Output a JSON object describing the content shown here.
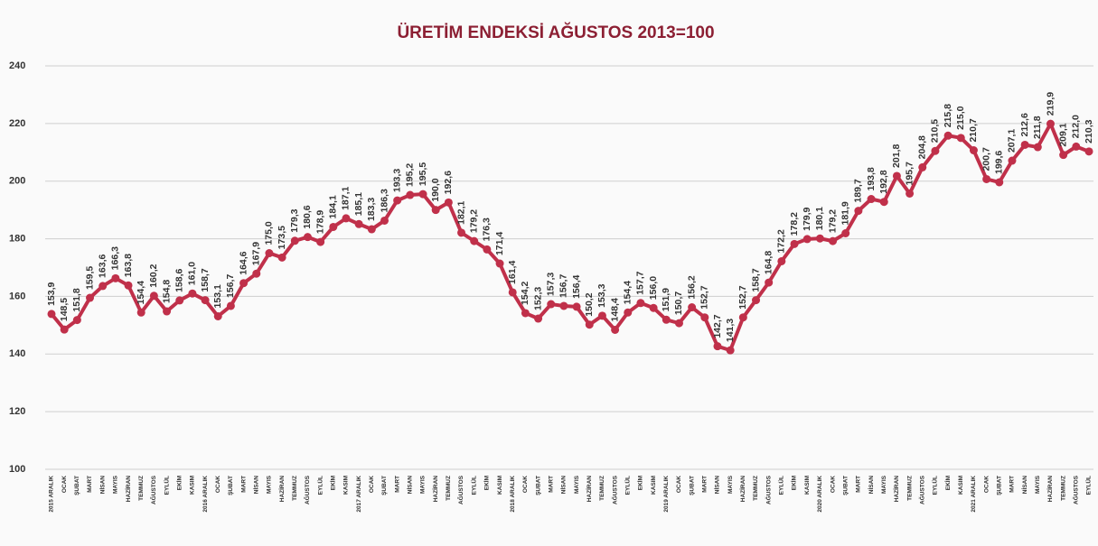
{
  "chart_data": {
    "type": "line",
    "title": "ÜRETİM ENDEKSİ AĞUSTOS 2013=100",
    "categories": [
      "2015 ARALIK",
      "OCAK",
      "ŞUBAT",
      "MART",
      "NİSAN",
      "MAYIS",
      "HAZİRAN",
      "TEMMUZ",
      "AĞUSTOS",
      "EYLÜL",
      "EKİM",
      "KASIM",
      "2016 ARALIK",
      "OCAK",
      "ŞUBAT",
      "MART",
      "NİSAN",
      "MAYIS",
      "HAZİRAN",
      "TEMMUZ",
      "AĞUSTOS",
      "EYLÜL",
      "EKİM",
      "KASIM",
      "2017 ARALIK",
      "OCAK",
      "ŞUBAT",
      "MART",
      "NİSAN",
      "MAYIS",
      "HAZİRAN",
      "TEMMUZ",
      "AĞUSTOS",
      "EYLÜL",
      "EKİM",
      "KASIM",
      "2018 ARALIK",
      "OCAK",
      "ŞUBAT",
      "MART",
      "NİSAN",
      "MAYIS",
      "HAZİRAN",
      "TEMMUZ",
      "AĞUSTOS",
      "EYLÜL",
      "EKİM",
      "KASIM",
      "2019 ARALIK",
      "OCAK",
      "ŞUBAT",
      "MART",
      "NİSAN",
      "MAYIS",
      "HAZİRAN",
      "TEMMUZ",
      "AĞUSTOS",
      "EYLÜL",
      "EKİM",
      "KASIM",
      "2020 ARALIK",
      "OCAK",
      "ŞUBAT",
      "MART",
      "NİSAN",
      "MAYIS",
      "HAZİRAN",
      "TEMMUZ",
      "AĞUSTOS",
      "EYLÜL",
      "EKİM",
      "KASIM",
      "2021 ARALIK",
      "OCAK",
      "ŞUBAT",
      "MART",
      "NİSAN",
      "MAYIS",
      "HAZİRAN",
      "TEMMUZ",
      "AĞUSTOS",
      "EYLÜL"
    ],
    "values": [
      153.9,
      148.5,
      151.8,
      159.5,
      163.6,
      166.3,
      163.8,
      154.4,
      160.2,
      154.8,
      158.6,
      161.0,
      158.7,
      153.1,
      156.7,
      164.6,
      167.9,
      175.0,
      173.5,
      179.3,
      180.6,
      178.9,
      184.1,
      187.1,
      185.1,
      183.3,
      186.3,
      193.3,
      195.2,
      195.5,
      190.0,
      192.6,
      182.1,
      179.2,
      176.3,
      171.4,
      161.4,
      154.2,
      152.3,
      157.3,
      156.7,
      156.4,
      150.2,
      153.3,
      148.4,
      154.4,
      157.7,
      156.0,
      151.9,
      150.7,
      156.2,
      152.7,
      142.7,
      141.3,
      152.7,
      158.7,
      164.8,
      172.2,
      178.2,
      179.9,
      180.1,
      179.2,
      181.9,
      189.7,
      193.8,
      192.8,
      201.8,
      195.7,
      204.8,
      210.5,
      215.8,
      215.0,
      210.7,
      200.7,
      199.6,
      207.1,
      212.6,
      211.8,
      219.9,
      209.1,
      212.0,
      210.3
    ],
    "value_labels": [
      "153,9",
      "148,5",
      "151,8",
      "159,5",
      "163,6",
      "166,3",
      "163,8",
      "154,4",
      "160,2",
      "154,8",
      "158,6",
      "161,0",
      "158,7",
      "153,1",
      "156,7",
      "164,6",
      "167,9",
      "175,0",
      "173,5",
      "179,3",
      "180,6",
      "178,9",
      "184,1",
      "187,1",
      "185,1",
      "183,3",
      "186,3",
      "193,3",
      "195,2",
      "195,5",
      "190,0",
      "192,6",
      "182,1",
      "179,2",
      "176,3",
      "171,4",
      "161,4",
      "154,2",
      "152,3",
      "157,3",
      "156,7",
      "156,4",
      "150,2",
      "153,3",
      "148,4",
      "154,4",
      "157,7",
      "156,0",
      "151,9",
      "150,7",
      "156,2",
      "152,7",
      "142,7",
      "141,3",
      "152,7",
      "158,7",
      "164,8",
      "172,2",
      "178,2",
      "179,9",
      "180,1",
      "179,2",
      "181,9",
      "189,7",
      "193,8",
      "192,8",
      "201,8",
      "195,7",
      "204,8",
      "210,5",
      "215,8",
      "215,0",
      "210,7",
      "200,7",
      "199,6",
      "207,1",
      "212,6",
      "211,8",
      "219,9",
      "209,1",
      "212,0",
      "210,3"
    ],
    "color": "#c0304a",
    "ylim": [
      100,
      240
    ],
    "yticks": [
      100,
      120,
      140,
      160,
      180,
      200,
      220,
      240
    ],
    "grid": true
  }
}
